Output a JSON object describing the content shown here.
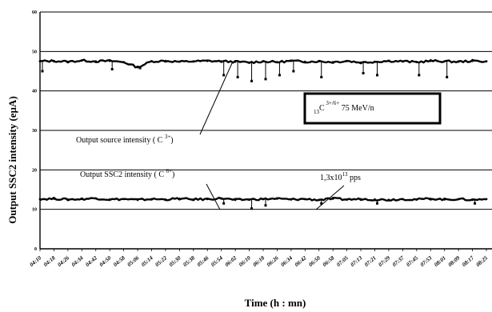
{
  "chart_data": {
    "type": "line",
    "title": "",
    "xlabel": "Time (h : mn)",
    "ylabel": "Output SSC2 intensity (eµA)",
    "ylim": [
      0,
      60
    ],
    "yticks": [
      0,
      10,
      20,
      30,
      40,
      50,
      60
    ],
    "grid": "horizontal",
    "categories": [
      "04:10",
      "04:18",
      "04:26",
      "04:34",
      "04:42",
      "04:50",
      "04:58",
      "05:06",
      "05:14",
      "05:22",
      "05:30",
      "05:38",
      "05:46",
      "05:54",
      "06:02",
      "06:10",
      "06:18",
      "06:26",
      "06:34",
      "06:42",
      "06:50",
      "06:58",
      "07:05",
      "07:13",
      "07:21",
      "07:29",
      "07:37",
      "07:45",
      "07:53",
      "08:01",
      "08:09",
      "08:17",
      "08:25"
    ],
    "series": [
      {
        "values": [
          47.5,
          47.6,
          47.4,
          47.7,
          47.5,
          47.6,
          47.3,
          46.0,
          47.5,
          47.6,
          47.4,
          47.5,
          47.6,
          47.5,
          47.4,
          47.2,
          47.5,
          47.3,
          47.6,
          47.4,
          47.5,
          47.3,
          47.6,
          47.2,
          47.4,
          47.6,
          47.5,
          47.3,
          47.6,
          47.5,
          47.4,
          47.6,
          47.5
        ],
        "dips": [
          {
            "x": "04:10",
            "y": 45.0
          },
          {
            "x": "04:50",
            "y": 45.5
          },
          {
            "x": "05:06",
            "y": 45.8
          },
          {
            "x": "05:54",
            "y": 44.0
          },
          {
            "x": "06:02",
            "y": 43.5
          },
          {
            "x": "06:10",
            "y": 42.5
          },
          {
            "x": "06:18",
            "y": 43.0
          },
          {
            "x": "06:26",
            "y": 44.0
          },
          {
            "x": "06:34",
            "y": 45.0
          },
          {
            "x": "06:50",
            "y": 43.5
          },
          {
            "x": "07:13",
            "y": 44.5
          },
          {
            "x": "07:21",
            "y": 44.0
          },
          {
            "x": "07:45",
            "y": 44.0
          },
          {
            "x": "08:01",
            "y": 43.5
          }
        ]
      },
      {
        "values": [
          12.6,
          12.7,
          12.5,
          12.6,
          12.8,
          12.5,
          12.6,
          12.4,
          12.6,
          12.5,
          12.7,
          12.5,
          12.6,
          12.8,
          12.4,
          12.5,
          12.6,
          12.7,
          12.5,
          12.6,
          12.4,
          12.7,
          12.5,
          12.6,
          12.5,
          12.4,
          12.6,
          12.5,
          12.7,
          12.5,
          12.6,
          12.4,
          12.6
        ],
        "dips": [
          {
            "x": "05:54",
            "y": 11.5
          },
          {
            "x": "06:10",
            "y": 10.2
          },
          {
            "x": "06:18",
            "y": 11.0
          },
          {
            "x": "06:50",
            "y": 11.5
          },
          {
            "x": "07:21",
            "y": 11.5
          },
          {
            "x": "08:17",
            "y": 11.5
          }
        ]
      }
    ],
    "annotations": {
      "source_label": "Output source intensity  ( C ",
      "source_sup": "3+",
      "source_close": ")",
      "ssc2_label": "Output SSC2 intensity ( C ",
      "ssc2_sup": "6+",
      "ssc2_close": ")",
      "pps_text": "1,3x10",
      "pps_exp": "13",
      "pps_unit": " pps",
      "box_sub": "13",
      "box_c": "C",
      "box_sup": " 3+/6+",
      "box_energy": " 75 MeV/n"
    }
  }
}
